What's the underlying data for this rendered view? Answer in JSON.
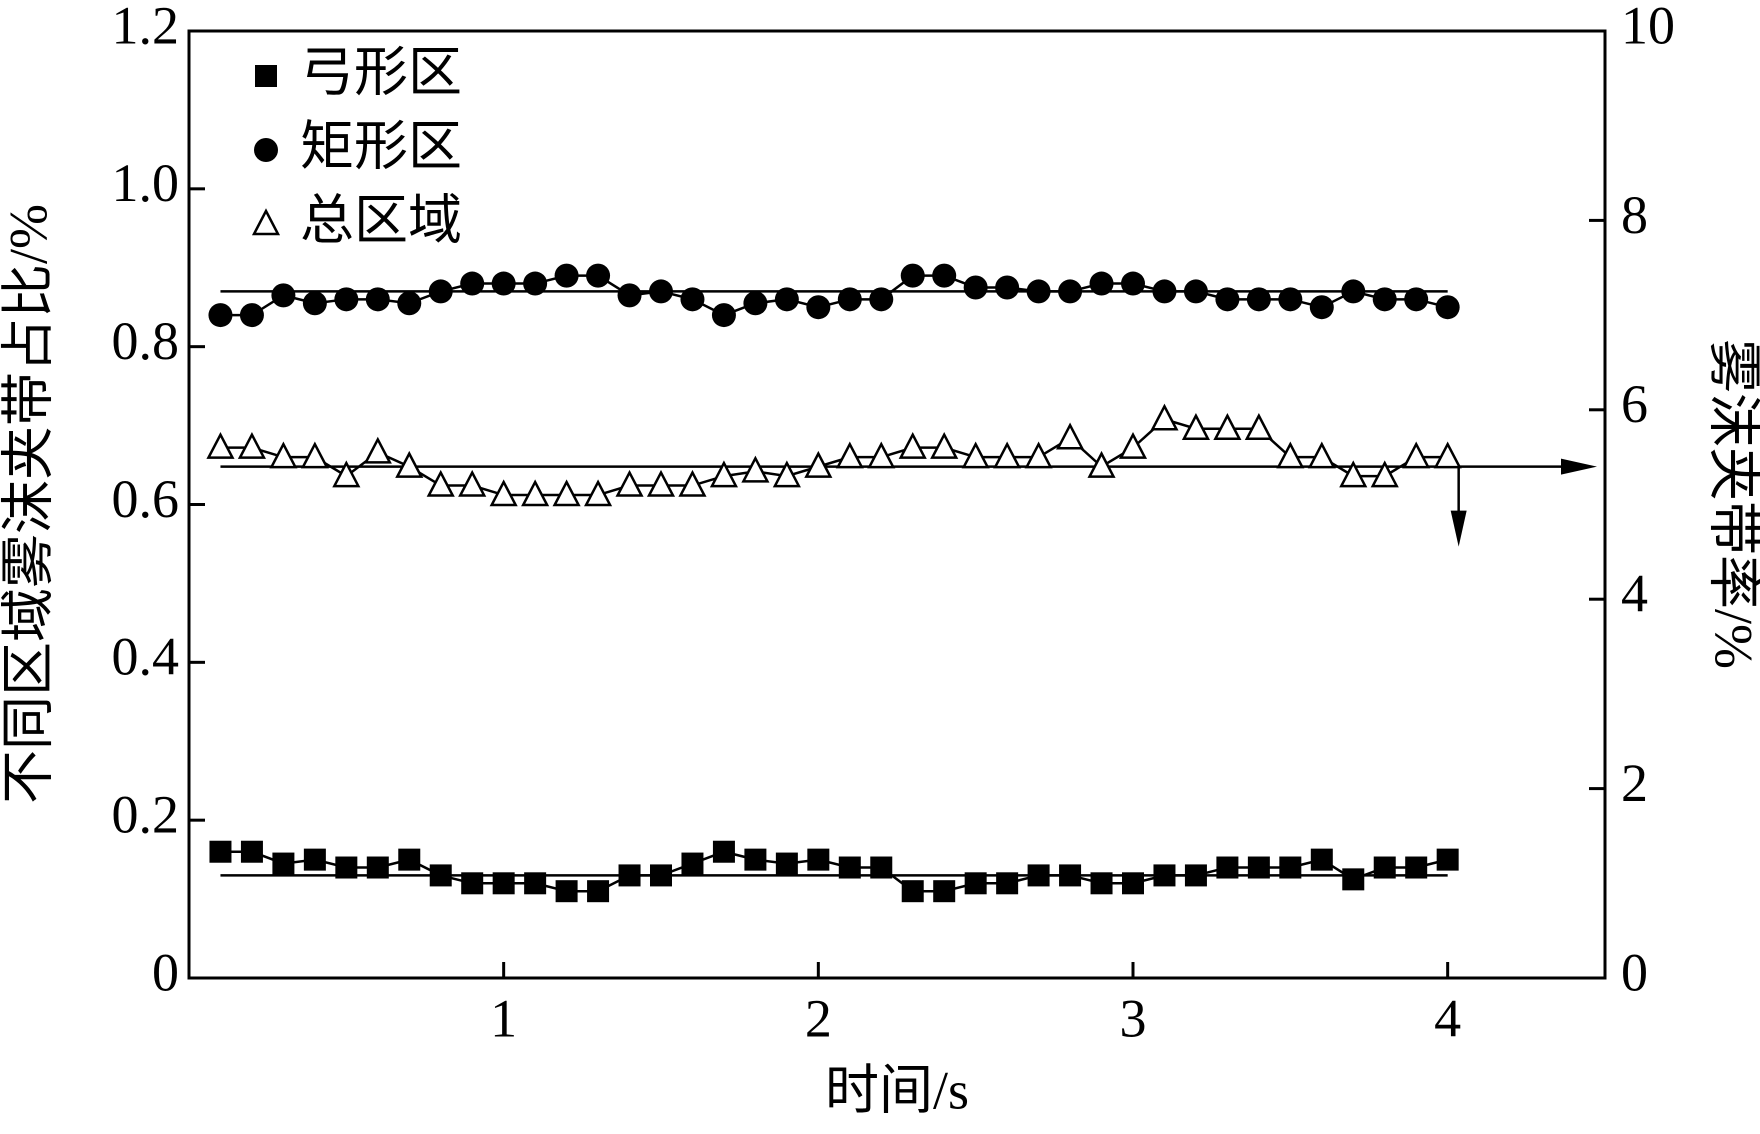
{
  "chart_data": {
    "type": "line",
    "x_label": "时间/s",
    "y_label": "不同区域雾沫夹带占比/%",
    "y2_label": "雾沫夹带率/%",
    "x": [
      0.1,
      0.2,
      0.3,
      0.4,
      0.5,
      0.6,
      0.7,
      0.8,
      0.9,
      1.0,
      1.1,
      1.2,
      1.3,
      1.4,
      1.5,
      1.6,
      1.7,
      1.8,
      1.9,
      2.0,
      2.1,
      2.2,
      2.3,
      2.4,
      2.5,
      2.6,
      2.7,
      2.8,
      2.9,
      3.0,
      3.1,
      3.2,
      3.3,
      3.4,
      3.5,
      3.6,
      3.7,
      3.8,
      3.9,
      4.0
    ],
    "series": [
      {
        "name": "弓形区",
        "color": "#000000",
        "marker": "square",
        "mean": 0.13,
        "values": [
          0.16,
          0.16,
          0.145,
          0.15,
          0.14,
          0.14,
          0.15,
          0.13,
          0.12,
          0.12,
          0.12,
          0.11,
          0.11,
          0.13,
          0.13,
          0.145,
          0.16,
          0.15,
          0.145,
          0.15,
          0.14,
          0.14,
          0.11,
          0.11,
          0.12,
          0.12,
          0.13,
          0.13,
          0.12,
          0.12,
          0.13,
          0.13,
          0.14,
          0.14,
          0.14,
          0.15,
          0.125,
          0.14,
          0.14,
          0.15
        ]
      },
      {
        "name": "矩形区",
        "color": "#000000",
        "marker": "circle",
        "mean": 0.87,
        "values": [
          0.84,
          0.84,
          0.865,
          0.855,
          0.86,
          0.86,
          0.855,
          0.87,
          0.88,
          0.88,
          0.88,
          0.89,
          0.89,
          0.865,
          0.87,
          0.86,
          0.84,
          0.855,
          0.86,
          0.85,
          0.86,
          0.86,
          0.89,
          0.89,
          0.875,
          0.875,
          0.87,
          0.87,
          0.88,
          0.88,
          0.87,
          0.87,
          0.86,
          0.86,
          0.86,
          0.85,
          0.87,
          0.86,
          0.86,
          0.85
        ]
      },
      {
        "name": "总区域",
        "color": "#000000",
        "marker": "triangle",
        "axis": "y2",
        "mean": 5.4,
        "values": [
          5.6,
          5.6,
          5.5,
          5.5,
          5.3,
          5.55,
          5.4,
          5.2,
          5.2,
          5.1,
          5.1,
          5.1,
          5.1,
          5.2,
          5.2,
          5.2,
          5.3,
          5.35,
          5.3,
          5.4,
          5.5,
          5.5,
          5.6,
          5.6,
          5.5,
          5.5,
          5.5,
          5.7,
          5.4,
          5.6,
          5.9,
          5.8,
          5.8,
          5.8,
          5.5,
          5.5,
          5.3,
          5.3,
          5.5,
          5.5
        ]
      }
    ],
    "xlim": [
      0,
      4.5
    ],
    "xticks": [
      1,
      2,
      3,
      4
    ],
    "ylim": [
      0,
      1.2
    ],
    "yticks": [
      0,
      0.2,
      0.4,
      0.6,
      0.8,
      {
        "value": 1,
        "label": "1.0"
      },
      1.2
    ],
    "y2lim": [
      0,
      10
    ],
    "y2ticks": [
      0,
      2,
      4,
      6,
      8,
      10
    ],
    "legend": "upper left",
    "grid": false
  }
}
